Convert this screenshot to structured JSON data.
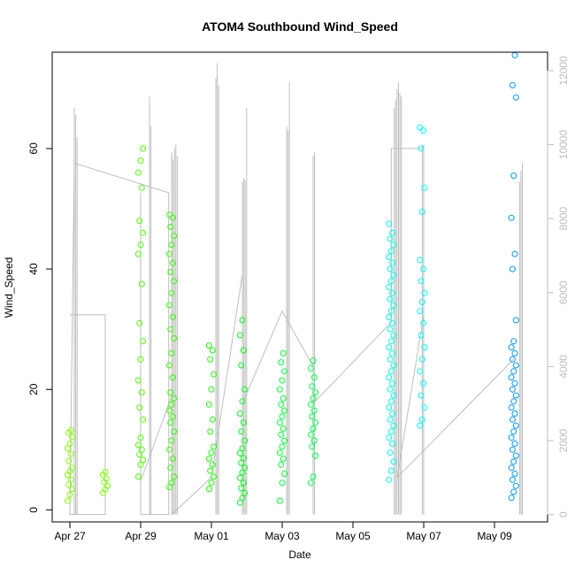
{
  "chart_data": {
    "type": "scatter",
    "title": "ATOM4 Southbound Wind_Speed",
    "xlabel": "Date",
    "ylabel": "Wind_Speed",
    "xlim": [
      "2021-04-26 12:00",
      "2021-05-10 12:00"
    ],
    "ylim": [
      -2,
      76
    ],
    "y2lim": [
      -200,
      12500
    ],
    "x_ticks": [
      {
        "date": "2021-04-27",
        "label": "Apr 27"
      },
      {
        "date": "2021-04-29",
        "label": "Apr 29"
      },
      {
        "date": "2021-05-01",
        "label": "May 01"
      },
      {
        "date": "2021-05-03",
        "label": "May 03"
      },
      {
        "date": "2021-05-05",
        "label": "May 05"
      },
      {
        "date": "2021-05-07",
        "label": "May 07"
      },
      {
        "date": "2021-05-09",
        "label": "May 09"
      }
    ],
    "y_ticks": [
      0,
      20,
      40,
      60
    ],
    "y2_ticks": [
      0,
      2000,
      4000,
      6000,
      8000,
      10000,
      12000
    ],
    "grid": false,
    "series": [
      {
        "date": "2021-04-27 00:00",
        "color": "#80ff00",
        "values": [
          1.5,
          2.5,
          3.5,
          4.2,
          5.0,
          5.8,
          6.4,
          7.0,
          8.1,
          9.3,
          10.2,
          11.0,
          12.1,
          12.8,
          13.2
        ]
      },
      {
        "date": "2021-04-28 00:00",
        "color": "#80ff00",
        "values": [
          2.8,
          3.4,
          4.0,
          4.6,
          5.2,
          5.8,
          6.3
        ]
      },
      {
        "date": "2021-04-29 00:00",
        "color": "#4dff00",
        "values": [
          5.5,
          7.5,
          8.3,
          9.2,
          10.0,
          10.8,
          12.0,
          15.0,
          17.0,
          19.5,
          21.5,
          25.0,
          28.0,
          31.0,
          37.5,
          42.5,
          44.0,
          46.0,
          48.0,
          53.5,
          56.0,
          58.0,
          60.0
        ]
      },
      {
        "date": "2021-04-29 21:00",
        "color": "#33ff00",
        "values": [
          3.8,
          4.5,
          5.5,
          7.0,
          8.5,
          10.0,
          11.5,
          13.0,
          14.5,
          15.5,
          16.5,
          17.5,
          18.5,
          19.5,
          22.0,
          24.0,
          26.0,
          28.5,
          30.0,
          32.0,
          34.0,
          36.0,
          38.0,
          39.5,
          41.0,
          42.5,
          44.0,
          45.5,
          47.0,
          48.5,
          49.0
        ]
      },
      {
        "date": "2021-05-01 00:00",
        "color": "#19ff00",
        "values": [
          3.5,
          4.5,
          5.5,
          6.5,
          7.5,
          8.5,
          9.5,
          10.5,
          13.0,
          15.0,
          17.5,
          20.0,
          22.5,
          25.0,
          26.5,
          27.3
        ]
      },
      {
        "date": "2021-05-01 21:00",
        "color": "#00ff19",
        "values": [
          1.2,
          2.0,
          2.8,
          3.6,
          4.5,
          5.3,
          6.2,
          7.0,
          7.8,
          8.6,
          9.4,
          10.2,
          11.5,
          13.0,
          14.5,
          16.0,
          18.0,
          20.0,
          24.0,
          26.5,
          29.0,
          31.5
        ]
      },
      {
        "date": "2021-05-03 00:00",
        "color": "#00ff33",
        "values": [
          1.5,
          4.5,
          6.0,
          7.5,
          8.5,
          9.5,
          10.5,
          11.5,
          12.5,
          13.5,
          14.5,
          15.5,
          16.5,
          17.5,
          18.5,
          20.0,
          21.5,
          23.0,
          24.5,
          26.0
        ]
      },
      {
        "date": "2021-05-03 21:00",
        "color": "#00ff4d",
        "values": [
          4.5,
          5.5,
          9.0,
          10.5,
          11.5,
          12.5,
          13.5,
          14.5,
          15.5,
          16.5,
          17.5,
          18.5,
          19.5,
          20.5,
          22.0,
          23.5,
          24.8
        ]
      },
      {
        "date": "2021-05-06 02:00",
        "color": "#00ffea",
        "values": [
          5.0,
          6.5,
          8.0,
          9.5,
          11.0,
          12.0,
          13.0,
          14.0,
          15.0,
          16.0,
          17.0,
          18.0,
          19.0,
          20.0,
          21.0,
          22.0,
          23.0,
          24.0,
          25.0,
          26.0,
          27.0,
          28.0,
          29.0,
          30.0,
          31.0,
          32.0,
          33.0,
          34.0,
          35.0,
          36.0,
          37.0,
          38.0,
          39.0,
          40.0,
          41.0,
          42.0,
          43.0,
          44.0,
          45.0,
          46.0,
          47.5
        ]
      },
      {
        "date": "2021-05-06 23:00",
        "color": "#00ffff",
        "values": [
          14.0,
          15.0,
          17.0,
          19.0,
          21.0,
          23.0,
          25.0,
          27.0,
          29.0,
          31.0,
          33.0,
          34.5,
          36.0,
          38.0,
          40.0,
          41.5,
          49.5,
          53.5,
          60.0,
          63.0,
          63.5
        ]
      },
      {
        "date": "2021-05-09 13:00",
        "color": "#0099ff",
        "values": [
          2.0,
          3.0,
          4.0,
          5.0,
          6.0,
          7.0,
          8.0,
          9.0,
          10.0,
          11.0,
          12.0,
          13.0,
          14.0,
          15.0,
          16.0,
          17.0,
          18.0,
          19.0,
          20.0,
          21.0,
          22.0,
          23.0,
          24.0,
          25.0,
          26.0,
          27.0,
          28.0,
          31.5,
          40.0,
          42.5,
          48.5,
          55.5,
          68.5,
          70.5,
          75.5
        ]
      }
    ],
    "secondary_series": {
      "color": "#bebebe",
      "spikes": [
        {
          "date": "2021-04-27 03:00",
          "values": [
            11000,
            10800,
            10200
          ]
        },
        {
          "date": "2021-04-29 06:00",
          "values": [
            11300,
            10500
          ]
        },
        {
          "date": "2021-04-29 21:00",
          "values": [
            9800,
            9600,
            9900,
            10000,
            9700
          ]
        },
        {
          "date": "2021-05-01 03:00",
          "values": [
            11800,
            12200,
            11600
          ]
        },
        {
          "date": "2021-05-01 21:00",
          "values": [
            9000,
            9100,
            9050,
            11000
          ]
        },
        {
          "date": "2021-05-03 03:00",
          "values": [
            10500,
            10400,
            11700
          ]
        },
        {
          "date": "2021-05-03 21:00",
          "values": [
            9700,
            9800
          ]
        },
        {
          "date": "2021-05-06 04:00",
          "values": [
            11000,
            11200,
            11500,
            11700,
            11400,
            11300
          ]
        },
        {
          "date": "2021-05-06 23:00",
          "values": [
            10000,
            10000
          ]
        },
        {
          "date": "2021-05-09 17:00",
          "values": [
            9000,
            9300,
            9500
          ]
        }
      ],
      "path": [
        {
          "date": "2021-04-27 00:00",
          "value": 5400
        },
        {
          "date": "2021-04-28 00:00",
          "value": 5400
        },
        {
          "date": "2021-04-28 00:00",
          "value": 0
        },
        {
          "date": "2021-04-27 00:00",
          "value": 0
        },
        {
          "date": "2021-04-27 03:00",
          "value": 9500
        },
        {
          "date": "2021-04-29 19:00",
          "value": 8700
        },
        {
          "date": "2021-04-29 19:00",
          "value": 0
        },
        {
          "date": "2021-04-29 00:00",
          "value": 0
        },
        {
          "date": "2021-04-29 00:00",
          "value": 8700
        },
        {
          "date": "2021-04-29 00:00",
          "value": 900
        },
        {
          "date": "2021-04-29 21:00",
          "value": 3200
        },
        {
          "date": "2021-04-29 21:00",
          "value": 0
        },
        {
          "date": "2021-05-01 00:00",
          "value": 1000
        },
        {
          "date": "2021-05-01 21:00",
          "value": 6500
        },
        {
          "date": "2021-05-01 21:00",
          "value": 900
        },
        {
          "date": "2021-05-01 21:00",
          "value": 3000
        },
        {
          "date": "2021-05-03 00:00",
          "value": 5500
        },
        {
          "date": "2021-05-03 21:00",
          "value": 4000
        },
        {
          "date": "2021-05-03 21:00",
          "value": 3000
        },
        {
          "date": "2021-05-06 02:00",
          "value": 5200
        },
        {
          "date": "2021-05-06 02:00",
          "value": 9900
        },
        {
          "date": "2021-05-07 00:00",
          "value": 9900
        },
        {
          "date": "2021-05-07 00:00",
          "value": 5400
        },
        {
          "date": "2021-05-06 06:00",
          "value": 1000
        },
        {
          "date": "2021-05-09 13:00",
          "value": 4200
        }
      ]
    }
  }
}
